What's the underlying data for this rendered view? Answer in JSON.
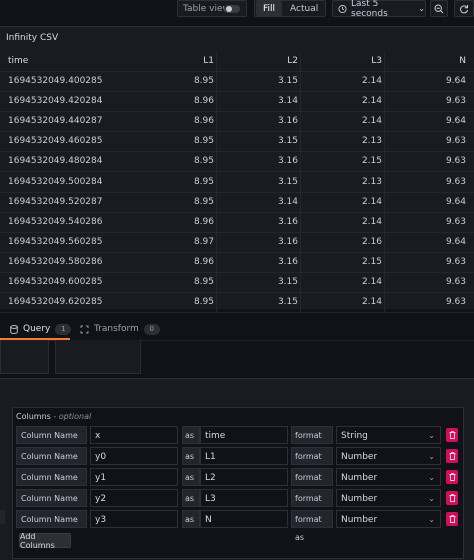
{
  "toolbar": {
    "table_view_label": "Table view",
    "fill_label": "Fill",
    "actual_label": "Actual",
    "time_range": "Last 5 seconds"
  },
  "panel": {
    "title": "Infinity CSV",
    "columns": [
      "time",
      "L1",
      "L2",
      "L3",
      "N"
    ],
    "rows": [
      [
        "1694532049.400285",
        "8.95",
        "3.15",
        "2.14",
        "9.64"
      ],
      [
        "1694532049.420284",
        "8.96",
        "3.14",
        "2.14",
        "9.63"
      ],
      [
        "1694532049.440287",
        "8.96",
        "3.16",
        "2.14",
        "9.64"
      ],
      [
        "1694532049.460285",
        "8.95",
        "3.15",
        "2.13",
        "9.63"
      ],
      [
        "1694532049.480284",
        "8.95",
        "3.16",
        "2.15",
        "9.63"
      ],
      [
        "1694532049.500284",
        "8.95",
        "3.15",
        "2.13",
        "9.63"
      ],
      [
        "1694532049.520287",
        "8.95",
        "3.14",
        "2.14",
        "9.64"
      ],
      [
        "1694532049.540286",
        "8.96",
        "3.16",
        "2.14",
        "9.63"
      ],
      [
        "1694532049.560285",
        "8.97",
        "3.16",
        "2.16",
        "9.64"
      ],
      [
        "1694532049.580286",
        "8.96",
        "3.16",
        "2.15",
        "9.63"
      ],
      [
        "1694532049.600285",
        "8.95",
        "3.15",
        "2.14",
        "9.63"
      ],
      [
        "1694532049.620285",
        "8.95",
        "3.15",
        "2.14",
        "9.63"
      ]
    ]
  },
  "tabs": {
    "query_label": "Query",
    "query_count": "1",
    "transform_label": "Transform",
    "transform_count": "0"
  },
  "columns_section": {
    "title": "Columns",
    "optional": "- optional",
    "column_name_label": "Column Name",
    "as_label": "as",
    "format_as_label": "format as",
    "rows": [
      {
        "selector": "x",
        "alias": "time",
        "format": "String"
      },
      {
        "selector": "y0",
        "alias": "L1",
        "format": "Number"
      },
      {
        "selector": "y1",
        "alias": "L2",
        "format": "Number"
      },
      {
        "selector": "y2",
        "alias": "L3",
        "format": "Number"
      },
      {
        "selector": "y3",
        "alias": "N",
        "format": "Number"
      }
    ],
    "add_button": "Add Columns"
  },
  "colors": {
    "background": "#111217",
    "panel": "#181b1f",
    "accent": "#f97b32",
    "delete": "#d10e5c"
  }
}
